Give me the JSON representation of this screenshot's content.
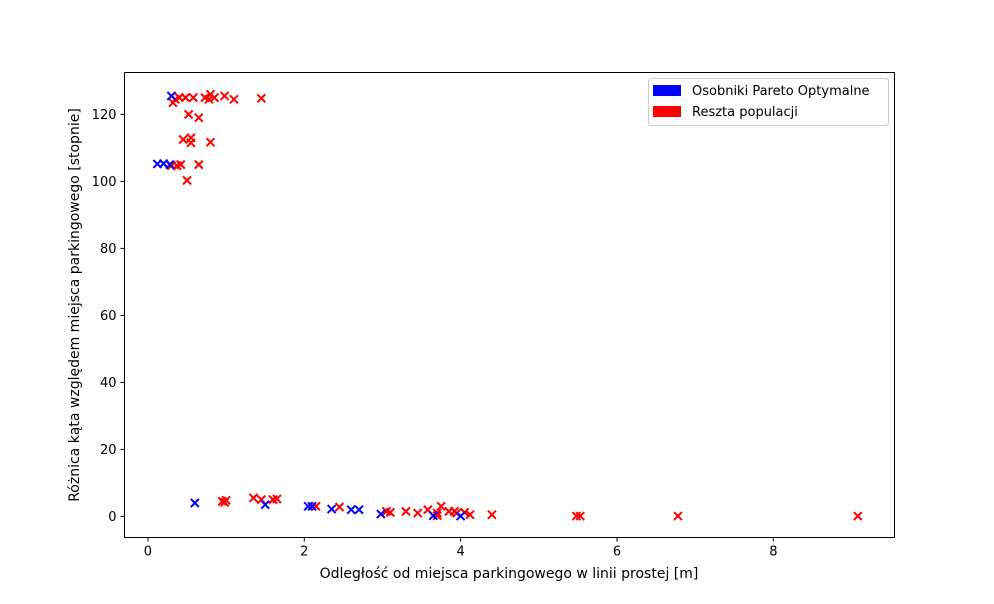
{
  "chart_data": {
    "type": "scatter",
    "title": "",
    "xlabel": "Odległość od miejsca parkingowego w linii prostej [m]",
    "ylabel": "Różnica kąta względem miejsca parkingowego [stopnie]",
    "xlim": [
      -0.3,
      9.55
    ],
    "ylim": [
      -6.3,
      132.5
    ],
    "xticks": [
      0,
      2,
      4,
      6,
      8
    ],
    "yticks": [
      0,
      20,
      40,
      60,
      80,
      100,
      120
    ],
    "grid": false,
    "legend_position": "top-right",
    "marker": "x",
    "series": [
      {
        "name": "Osobniki Pareto Optymalne",
        "color": "#0000ff",
        "points": [
          [
            0.3,
            125.5
          ],
          [
            0.12,
            105.2
          ],
          [
            0.2,
            105.3
          ],
          [
            0.28,
            105.0
          ],
          [
            0.6,
            4.0
          ],
          [
            1.5,
            3.5
          ],
          [
            2.05,
            3.0
          ],
          [
            2.1,
            3.0
          ],
          [
            2.35,
            2.2
          ],
          [
            2.6,
            2.0
          ],
          [
            2.7,
            2.0
          ],
          [
            2.98,
            0.7
          ],
          [
            3.65,
            0.2
          ],
          [
            4.0,
            0.1
          ]
        ]
      },
      {
        "name": "Reszta populacji",
        "color": "#ff0000",
        "points": [
          [
            0.35,
            124.5
          ],
          [
            0.32,
            123.5
          ],
          [
            0.4,
            125.0
          ],
          [
            0.48,
            125.0
          ],
          [
            0.58,
            125.0
          ],
          [
            0.73,
            125.0
          ],
          [
            0.78,
            124.5
          ],
          [
            0.8,
            126.0
          ],
          [
            0.85,
            125.0
          ],
          [
            0.98,
            125.5
          ],
          [
            1.1,
            124.5
          ],
          [
            1.45,
            124.8
          ],
          [
            0.52,
            120.0
          ],
          [
            0.65,
            119.0
          ],
          [
            0.45,
            112.5
          ],
          [
            0.55,
            113.0
          ],
          [
            0.55,
            111.5
          ],
          [
            0.8,
            111.7
          ],
          [
            0.3,
            104.7
          ],
          [
            0.37,
            104.7
          ],
          [
            0.42,
            105.0
          ],
          [
            0.65,
            105.0
          ],
          [
            0.5,
            100.3
          ],
          [
            0.95,
            4.5
          ],
          [
            1.0,
            4.8
          ],
          [
            0.98,
            4.2
          ],
          [
            1.35,
            5.5
          ],
          [
            1.45,
            5.0
          ],
          [
            1.6,
            5.0
          ],
          [
            1.65,
            5.2
          ],
          [
            2.15,
            3.0
          ],
          [
            2.45,
            2.8
          ],
          [
            3.05,
            1.5
          ],
          [
            3.1,
            1.2
          ],
          [
            3.3,
            1.5
          ],
          [
            3.45,
            1.0
          ],
          [
            3.58,
            2.0
          ],
          [
            3.7,
            1.0
          ],
          [
            3.75,
            3.0
          ],
          [
            3.85,
            1.5
          ],
          [
            3.92,
            1.5
          ],
          [
            3.95,
            1.0
          ],
          [
            4.05,
            1.2
          ],
          [
            3.7,
            0.2
          ],
          [
            4.12,
            0.5
          ],
          [
            4.4,
            0.5
          ],
          [
            5.48,
            0.1
          ],
          [
            5.53,
            0.1
          ],
          [
            6.78,
            0.1
          ],
          [
            9.08,
            0.1
          ]
        ]
      }
    ]
  }
}
